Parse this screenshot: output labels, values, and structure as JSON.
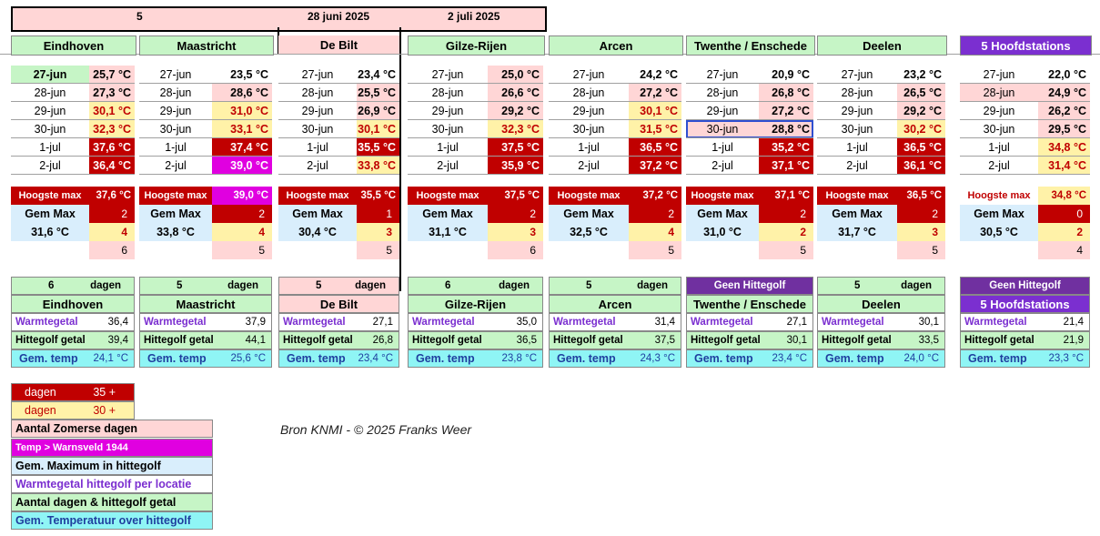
{
  "header": {
    "count": "5",
    "start_date": "28 juni 2025",
    "end_date": "2 juli 2025"
  },
  "colors": {
    "green": "#c6f5c6",
    "pink": "#ffd6d6",
    "yellow": "#fff2a8",
    "darkred": "#c00000",
    "magenta": "#e000e0",
    "lightblue": "#d9eefc",
    "purple": "#7030a0",
    "violet": "#7b2fd0",
    "cyan": "#8ff5f5",
    "selection": "#2f4fd0"
  },
  "stations": [
    {
      "name": "Eindhoven",
      "header_bg": "green",
      "rows": [
        {
          "date": "27-jun",
          "temp": "25,7 °C",
          "date_bg": "green",
          "temp_bg": "pink"
        },
        {
          "date": "28-jun",
          "temp": "27,3 °C",
          "date_bg": "none",
          "temp_bg": "pink"
        },
        {
          "date": "29-jun",
          "temp": "30,1 °C",
          "date_bg": "none",
          "temp_bg": "yellow"
        },
        {
          "date": "30-jun",
          "temp": "32,3 °C",
          "date_bg": "none",
          "temp_bg": "yellow"
        },
        {
          "date": "1-jul",
          "temp": "37,6 °C",
          "date_bg": "none",
          "temp_bg": "darkred"
        },
        {
          "date": "2-jul",
          "temp": "36,4 °C",
          "date_bg": "none",
          "temp_bg": "darkred"
        }
      ],
      "hoogste_label": "Hoogste max",
      "hoogste": "37,6 °C",
      "hoogste_bg": "darkred",
      "gem_label": "Gem Max",
      "gem_max_val": "31,6 °C",
      "d35": "2",
      "d30": "4",
      "zomers": "6",
      "days": "6",
      "days_label": "dagen",
      "wg_label": "Warmtegetal",
      "warmtegetal": "36,4",
      "hg_label": "Hittegolf getal",
      "hittegolf": "39,4",
      "gt_label": "Gem. temp",
      "gemtemp": "24,1 °C",
      "bottom_bg": "green"
    },
    {
      "name": "Maastricht",
      "header_bg": "green",
      "rows": [
        {
          "date": "27-jun",
          "temp": "23,5 °C",
          "date_bg": "none",
          "temp_bg": "none"
        },
        {
          "date": "28-jun",
          "temp": "28,6 °C",
          "date_bg": "none",
          "temp_bg": "pink"
        },
        {
          "date": "29-jun",
          "temp": "31,0 °C",
          "date_bg": "none",
          "temp_bg": "yellow"
        },
        {
          "date": "30-jun",
          "temp": "33,1 °C",
          "date_bg": "none",
          "temp_bg": "yellow"
        },
        {
          "date": "1-jul",
          "temp": "37,4 °C",
          "date_bg": "none",
          "temp_bg": "darkred"
        },
        {
          "date": "2-jul",
          "temp": "39,0 °C",
          "date_bg": "none",
          "temp_bg": "magenta"
        }
      ],
      "hoogste_label": "Hoogste max",
      "hoogste": "39,0 °C",
      "hoogste_bg": "magenta",
      "gem_label": "Gem Max",
      "gem_max_val": "33,8 °C",
      "d35": "2",
      "d30": "4",
      "zomers": "5",
      "days": "5",
      "days_label": "dagen",
      "wg_label": "Warmtegetal",
      "warmtegetal": "37,9",
      "hg_label": "Hittegolf getal",
      "hittegolf": "44,1",
      "gt_label": "Gem. temp",
      "gemtemp": "25,6 °C",
      "bottom_bg": "green"
    },
    {
      "name": "De Bilt",
      "header_bg": "pink",
      "rows": [
        {
          "date": "27-jun",
          "temp": "23,4 °C",
          "date_bg": "none",
          "temp_bg": "none"
        },
        {
          "date": "28-jun",
          "temp": "25,5 °C",
          "date_bg": "none",
          "temp_bg": "pink"
        },
        {
          "date": "29-jun",
          "temp": "26,9 °C",
          "date_bg": "none",
          "temp_bg": "pink"
        },
        {
          "date": "30-jun",
          "temp": "30,1 °C",
          "date_bg": "none",
          "temp_bg": "yellow"
        },
        {
          "date": "1-jul",
          "temp": "35,5 °C",
          "date_bg": "none",
          "temp_bg": "darkred"
        },
        {
          "date": "2-jul",
          "temp": "33,8 °C",
          "date_bg": "none",
          "temp_bg": "yellow"
        }
      ],
      "hoogste_label": "Hoogste max",
      "hoogste": "35,5 °C",
      "hoogste_bg": "darkred",
      "gem_label": "Gem Max",
      "gem_max_val": "30,4 °C",
      "d35": "1",
      "d30": "3",
      "zomers": "5",
      "days": "5",
      "days_label": "dagen",
      "wg_label": "Warmtegetal",
      "warmtegetal": "27,1",
      "hg_label": "Hittegolf getal",
      "hittegolf": "26,8",
      "gt_label": "Gem. temp",
      "gemtemp": "23,4 °C",
      "bottom_bg": "pink"
    },
    {
      "name": "Gilze-Rijen",
      "header_bg": "green",
      "rows": [
        {
          "date": "27-jun",
          "temp": "25,0 °C",
          "date_bg": "none",
          "temp_bg": "pink"
        },
        {
          "date": "28-jun",
          "temp": "26,6 °C",
          "date_bg": "none",
          "temp_bg": "pink"
        },
        {
          "date": "29-jun",
          "temp": "29,2 °C",
          "date_bg": "none",
          "temp_bg": "pink"
        },
        {
          "date": "30-jun",
          "temp": "32,3 °C",
          "date_bg": "none",
          "temp_bg": "yellow"
        },
        {
          "date": "1-jul",
          "temp": "37,5 °C",
          "date_bg": "none",
          "temp_bg": "darkred"
        },
        {
          "date": "2-jul",
          "temp": "35,9 °C",
          "date_bg": "none",
          "temp_bg": "darkred"
        }
      ],
      "hoogste_label": "Hoogste max",
      "hoogste": "37,5 °C",
      "hoogste_bg": "darkred",
      "gem_label": "Gem Max",
      "gem_max_val": "31,1 °C",
      "d35": "2",
      "d30": "3",
      "zomers": "6",
      "days": "6",
      "days_label": "dagen",
      "wg_label": "Warmtegetal",
      "warmtegetal": "35,0",
      "hg_label": "Hittegolf getal",
      "hittegolf": "36,5",
      "gt_label": "Gem. temp",
      "gemtemp": "23,8 °C",
      "bottom_bg": "green"
    },
    {
      "name": "Arcen",
      "header_bg": "green",
      "rows": [
        {
          "date": "27-jun",
          "temp": "24,2 °C",
          "date_bg": "none",
          "temp_bg": "none"
        },
        {
          "date": "28-jun",
          "temp": "27,2 °C",
          "date_bg": "none",
          "temp_bg": "pink"
        },
        {
          "date": "29-jun",
          "temp": "30,1 °C",
          "date_bg": "none",
          "temp_bg": "yellow"
        },
        {
          "date": "30-jun",
          "temp": "31,5 °C",
          "date_bg": "none",
          "temp_bg": "yellow"
        },
        {
          "date": "1-jul",
          "temp": "36,5 °C",
          "date_bg": "none",
          "temp_bg": "darkred"
        },
        {
          "date": "2-jul",
          "temp": "37,2 °C",
          "date_bg": "none",
          "temp_bg": "darkred"
        }
      ],
      "hoogste_label": "Hoogste max",
      "hoogste": "37,2 °C",
      "hoogste_bg": "darkred",
      "gem_label": "Gem Max",
      "gem_max_val": "32,5 °C",
      "d35": "2",
      "d30": "4",
      "zomers": "5",
      "days": "5",
      "days_label": "dagen",
      "wg_label": "Warmtegetal",
      "warmtegetal": "31,4",
      "hg_label": "Hittegolf getal",
      "hittegolf": "37,5",
      "gt_label": "Gem. temp",
      "gemtemp": "24,3 °C",
      "bottom_bg": "green"
    },
    {
      "name": "Twenthe / Enschede",
      "header_bg": "green",
      "rows": [
        {
          "date": "27-jun",
          "temp": "20,9 °C",
          "date_bg": "none",
          "temp_bg": "none"
        },
        {
          "date": "28-jun",
          "temp": "26,8 °C",
          "date_bg": "none",
          "temp_bg": "pink"
        },
        {
          "date": "29-jun",
          "temp": "27,2 °C",
          "date_bg": "none",
          "temp_bg": "pink"
        },
        {
          "date": "30-jun",
          "temp": "28,8 °C",
          "date_bg": "pink",
          "temp_bg": "pink",
          "selected": true
        },
        {
          "date": "1-jul",
          "temp": "35,2 °C",
          "date_bg": "none",
          "temp_bg": "darkred"
        },
        {
          "date": "2-jul",
          "temp": "37,1 °C",
          "date_bg": "none",
          "temp_bg": "darkred"
        }
      ],
      "hoogste_label": "Hoogste max",
      "hoogste": "37,1 °C",
      "hoogste_bg": "darkred",
      "gem_label": "Gem Max",
      "gem_max_val": "31,0 °C",
      "d35": "2",
      "d30": "2",
      "zomers": "5",
      "days_label": "Geen Hittegolf",
      "warmtegetal": "27,1",
      "wg_label": "Warmtegetal",
      "hg_label": "Hittegolf getal",
      "hittegolf": "30,1",
      "gt_label": "Gem. temp",
      "gemtemp": "23,4 °C",
      "bottom_bg": "green",
      "no_wave": true
    },
    {
      "name": "Deelen",
      "header_bg": "green",
      "rows": [
        {
          "date": "27-jun",
          "temp": "23,2 °C",
          "date_bg": "none",
          "temp_bg": "none"
        },
        {
          "date": "28-jun",
          "temp": "26,5 °C",
          "date_bg": "none",
          "temp_bg": "pink"
        },
        {
          "date": "29-jun",
          "temp": "29,2 °C",
          "date_bg": "none",
          "temp_bg": "pink"
        },
        {
          "date": "30-jun",
          "temp": "30,2 °C",
          "date_bg": "none",
          "temp_bg": "yellow"
        },
        {
          "date": "1-jul",
          "temp": "36,5 °C",
          "date_bg": "none",
          "temp_bg": "darkred"
        },
        {
          "date": "2-jul",
          "temp": "36,1 °C",
          "date_bg": "none",
          "temp_bg": "darkred"
        }
      ],
      "hoogste_label": "Hoogste max",
      "hoogste": "36,5 °C",
      "hoogste_bg": "darkred",
      "gem_label": "Gem Max",
      "gem_max_val": "31,7 °C",
      "d35": "2",
      "d30": "3",
      "zomers": "5",
      "days": "5",
      "days_label": "dagen",
      "wg_label": "Warmtegetal",
      "warmtegetal": "30,1",
      "hg_label": "Hittegolf getal",
      "hittegolf": "33,5",
      "gt_label": "Gem. temp",
      "gemtemp": "24,0 °C",
      "bottom_bg": "green"
    },
    {
      "name": "5 Hoofdstations",
      "header_bg": "violet",
      "rows": [
        {
          "date": "27-jun",
          "temp": "22,0 °C",
          "date_bg": "none",
          "temp_bg": "none"
        },
        {
          "date": "28-jun",
          "temp": "24,9 °C",
          "date_bg": "pink",
          "temp_bg": "pink"
        },
        {
          "date": "29-jun",
          "temp": "26,2 °C",
          "date_bg": "none",
          "temp_bg": "pink"
        },
        {
          "date": "30-jun",
          "temp": "29,5 °C",
          "date_bg": "none",
          "temp_bg": "pink"
        },
        {
          "date": "1-jul",
          "temp": "34,8 °C",
          "date_bg": "none",
          "temp_bg": "yellow"
        },
        {
          "date": "2-jul",
          "temp": "31,4 °C",
          "date_bg": "none",
          "temp_bg": "yellow"
        }
      ],
      "hoogste_label": "Hoogste max",
      "hoogste": "34,8 °C",
      "hoogste_bg": "yellow",
      "hoogste_label_red": true,
      "gem_label": "Gem Max",
      "gem_max_val": "30,5 °C",
      "d35": "0",
      "d30": "2",
      "zomers": "4",
      "days_label": "Geen Hittegolf",
      "wg_label": "Warmtegetal",
      "warmtegetal": "21,4",
      "hg_label": "Hittegolf getal",
      "hittegolf": "21,9",
      "gt_label": "Gem. temp",
      "gemtemp": "23,3 °C",
      "bottom_bg": "violet",
      "no_wave": true
    }
  ],
  "legend": [
    {
      "text": "dagen",
      "value": "35 +",
      "bg": "darkred",
      "color": "#ffffff"
    },
    {
      "text": "dagen",
      "value": "30 +",
      "bg": "yellow",
      "color": "#c00000"
    },
    {
      "text": "Aantal Zomerse dagen",
      "bg": "pink",
      "color": "#000000"
    },
    {
      "text": "Temp > Warnsveld 1944",
      "bg": "magenta",
      "color": "#ffffff"
    },
    {
      "text": "Gem. Maximum in hittegolf",
      "bg": "lightblue",
      "color": "#000000"
    },
    {
      "text": "Warmtegetal hittegolf per locatie",
      "bg": "white",
      "color": "#7b2fd0"
    },
    {
      "text": "Aantal dagen & hittegolf getal",
      "bg": "green",
      "color": "#000000"
    },
    {
      "text": "Gem. Temperatuur over hittegolf",
      "bg": "cyan",
      "color": "#1f3f9f"
    }
  ],
  "source": "Bron KNMI   -  © 2025 Franks Weer"
}
